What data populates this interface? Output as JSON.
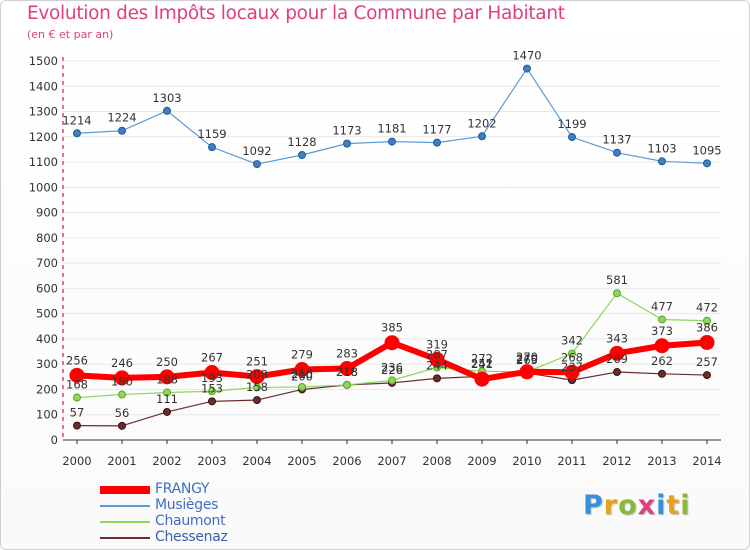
{
  "title": "Evolution des Impôts locaux pour la Commune par Habitant",
  "subtitle": "(en € et par an)",
  "logo": {
    "letters": [
      "P",
      "r",
      "o",
      "x",
      "i",
      "t",
      "i"
    ],
    "colors": [
      "#3a8fd8",
      "#e8a020",
      "#8ab83a",
      "#e03d84",
      "#3a8fd8",
      "#e8a020",
      "#8ab83a"
    ]
  },
  "chart_data": {
    "type": "line",
    "title": "Evolution des Impôts locaux pour la Commune par Habitant",
    "ylabel": "(en € et par an)",
    "xlabel": "",
    "ylim": [
      0,
      1500
    ],
    "yticks": [
      0,
      100,
      200,
      300,
      400,
      500,
      600,
      700,
      800,
      900,
      1000,
      1100,
      1200,
      1300,
      1400,
      1500
    ],
    "categories": [
      "2000",
      "2001",
      "2002",
      "2003",
      "2004",
      "2005",
      "2006",
      "2007",
      "2008",
      "2009",
      "2010",
      "2011",
      "2012",
      "2013",
      "2014"
    ],
    "legend_position": "bottom-left",
    "series": [
      {
        "name": "FRANGY",
        "color": "#ff0000",
        "values": [
          256,
          246,
          250,
          267,
          251,
          279,
          283,
          385,
          319,
          241,
          270,
          268,
          343,
          373,
          386
        ]
      },
      {
        "name": "Musièges",
        "color": "#5b9bd5",
        "values": [
          1214,
          1224,
          1303,
          1159,
          1092,
          1128,
          1173,
          1181,
          1177,
          1202,
          1470,
          1199,
          1137,
          1103,
          1095
        ]
      },
      {
        "name": "Chaumont",
        "color": "#8ed75a",
        "values": [
          168,
          180,
          188,
          193,
          208,
          210,
          218,
          236,
          287,
          272,
          270,
          342,
          581,
          477,
          472
        ]
      },
      {
        "name": "Chessenaz",
        "color": "#6b2c2c",
        "values": [
          57,
          56,
          111,
          153,
          158,
          200,
          218,
          226,
          244,
          252,
          265,
          237,
          269,
          262,
          257
        ]
      }
    ]
  }
}
